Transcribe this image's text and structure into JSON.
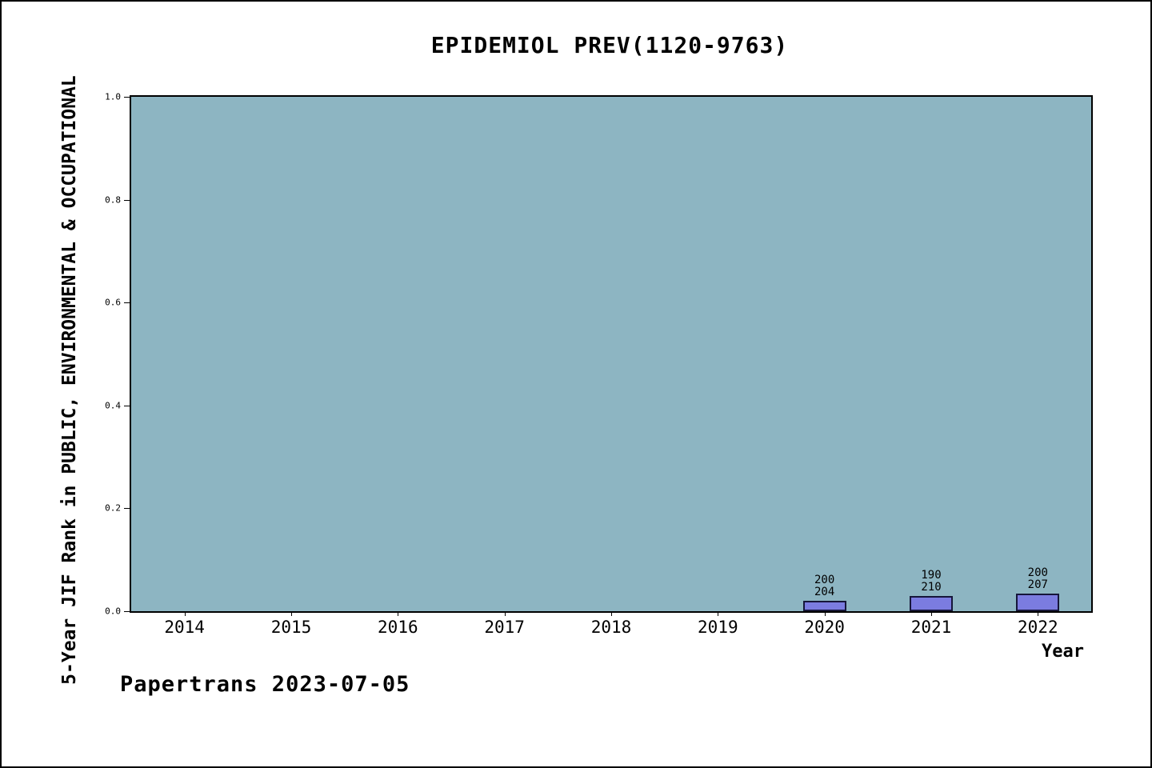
{
  "chart_data": {
    "type": "bar",
    "title": "EPIDEMIOL PREV(1120-9763)",
    "xlabel": "Year",
    "ylabel": "5-Year JIF Rank in PUBLIC, ENVIRONMENTAL & OCCUPATIONAL",
    "categories": [
      "2014",
      "2015",
      "2016",
      "2017",
      "2018",
      "2019",
      "2020",
      "2021",
      "2022"
    ],
    "values": [
      0,
      0,
      0,
      0,
      0,
      0,
      0.021,
      0.03,
      0.035
    ],
    "bar_labels": [
      null,
      null,
      null,
      null,
      null,
      null,
      [
        "200",
        "204"
      ],
      [
        "190",
        "210"
      ],
      [
        "200",
        "207"
      ]
    ],
    "yticks": [
      0.0,
      0.2,
      0.4,
      0.6,
      0.8,
      1.0
    ],
    "ylim": [
      0,
      1
    ],
    "grid": false,
    "legend": "none",
    "colors": {
      "plot_background": "#8db5c2",
      "bar_fill": "#7b7ce0",
      "bar_edge": "#16163a"
    }
  },
  "footer": {
    "credit": "Papertrans 2023-07-05"
  }
}
